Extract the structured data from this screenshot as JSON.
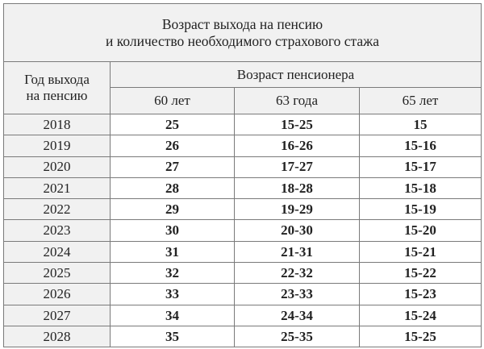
{
  "title_line1": "Возраст выхода на пенсию",
  "title_line2": "и количество необходимого страхового стажа",
  "year_header_line1": "Год выхода",
  "year_header_line2": "на пенсию",
  "age_group_header": "Возраст пенсионера",
  "columns": [
    "60 лет",
    "63 года",
    "65 лет"
  ],
  "rows": [
    {
      "year": "2018",
      "values": [
        "25",
        "15-25",
        "15"
      ]
    },
    {
      "year": "2019",
      "values": [
        "26",
        "16-26",
        "15-16"
      ]
    },
    {
      "year": "2020",
      "values": [
        "27",
        "17-27",
        "15-17"
      ]
    },
    {
      "year": "2021",
      "values": [
        "28",
        "18-28",
        "15-18"
      ]
    },
    {
      "year": "2022",
      "values": [
        "29",
        "19-29",
        "15-19"
      ]
    },
    {
      "year": "2023",
      "values": [
        "30",
        "20-30",
        "15-20"
      ]
    },
    {
      "year": "2024",
      "values": [
        "31",
        "21-31",
        "15-21"
      ]
    },
    {
      "year": "2025",
      "values": [
        "32",
        "22-32",
        "15-22"
      ]
    },
    {
      "year": "2026",
      "values": [
        "33",
        "23-33",
        "15-23"
      ]
    },
    {
      "year": "2027",
      "values": [
        "34",
        "24-34",
        "15-24"
      ]
    },
    {
      "year": "2028",
      "values": [
        "35",
        "25-35",
        "15-25"
      ]
    }
  ],
  "colors": {
    "header_bg": "#f1f1f1",
    "border": "#7a7a7a"
  }
}
